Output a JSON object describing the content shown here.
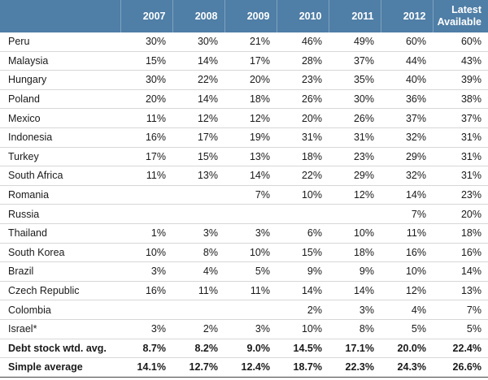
{
  "chart_data": {
    "type": "table",
    "columns": [
      "",
      "2007",
      "2008",
      "2009",
      "2010",
      "2011",
      "2012",
      "Latest\nAvailable"
    ],
    "rows": [
      {
        "name": "Peru",
        "values": [
          "30%",
          "30%",
          "21%",
          "46%",
          "49%",
          "60%",
          "60%"
        ]
      },
      {
        "name": "Malaysia",
        "values": [
          "15%",
          "14%",
          "17%",
          "28%",
          "37%",
          "44%",
          "43%"
        ]
      },
      {
        "name": "Hungary",
        "values": [
          "30%",
          "22%",
          "20%",
          "23%",
          "35%",
          "40%",
          "39%"
        ]
      },
      {
        "name": "Poland",
        "values": [
          "20%",
          "14%",
          "18%",
          "26%",
          "30%",
          "36%",
          "38%"
        ]
      },
      {
        "name": "Mexico",
        "values": [
          "11%",
          "12%",
          "12%",
          "20%",
          "26%",
          "37%",
          "37%"
        ]
      },
      {
        "name": "Indonesia",
        "values": [
          "16%",
          "17%",
          "19%",
          "31%",
          "31%",
          "32%",
          "31%"
        ]
      },
      {
        "name": "Turkey",
        "values": [
          "17%",
          "15%",
          "13%",
          "18%",
          "23%",
          "29%",
          "31%"
        ]
      },
      {
        "name": "South Africa",
        "values": [
          "11%",
          "13%",
          "14%",
          "22%",
          "29%",
          "32%",
          "31%"
        ]
      },
      {
        "name": "Romania",
        "values": [
          "",
          "",
          "7%",
          "10%",
          "12%",
          "14%",
          "23%"
        ]
      },
      {
        "name": "Russia",
        "values": [
          "",
          "",
          "",
          "",
          "",
          "7%",
          "20%"
        ]
      },
      {
        "name": "Thailand",
        "values": [
          "1%",
          "3%",
          "3%",
          "6%",
          "10%",
          "11%",
          "18%"
        ]
      },
      {
        "name": "South Korea",
        "values": [
          "10%",
          "8%",
          "10%",
          "15%",
          "18%",
          "16%",
          "16%"
        ]
      },
      {
        "name": "Brazil",
        "values": [
          "3%",
          "4%",
          "5%",
          "9%",
          "9%",
          "10%",
          "14%"
        ]
      },
      {
        "name": "Czech Republic",
        "values": [
          "16%",
          "11%",
          "11%",
          "14%",
          "14%",
          "12%",
          "13%"
        ]
      },
      {
        "name": "Colombia",
        "values": [
          "",
          "",
          "",
          "2%",
          "3%",
          "4%",
          "7%"
        ]
      },
      {
        "name": "Israel*",
        "values": [
          "3%",
          "2%",
          "3%",
          "10%",
          "8%",
          "5%",
          "5%"
        ]
      },
      {
        "name": "Debt stock wtd. avg.",
        "values": [
          "8.7%",
          "8.2%",
          "9.0%",
          "14.5%",
          "17.1%",
          "20.0%",
          "22.4%"
        ],
        "summary": true
      },
      {
        "name": "Simple average",
        "values": [
          "14.1%",
          "12.7%",
          "12.4%",
          "18.7%",
          "22.3%",
          "24.3%",
          "26.6%"
        ],
        "summary": true
      }
    ]
  },
  "colors": {
    "header_bg": "#4f7ea6",
    "header_text": "#ffffff",
    "row_rule": "#d7d7d7"
  }
}
